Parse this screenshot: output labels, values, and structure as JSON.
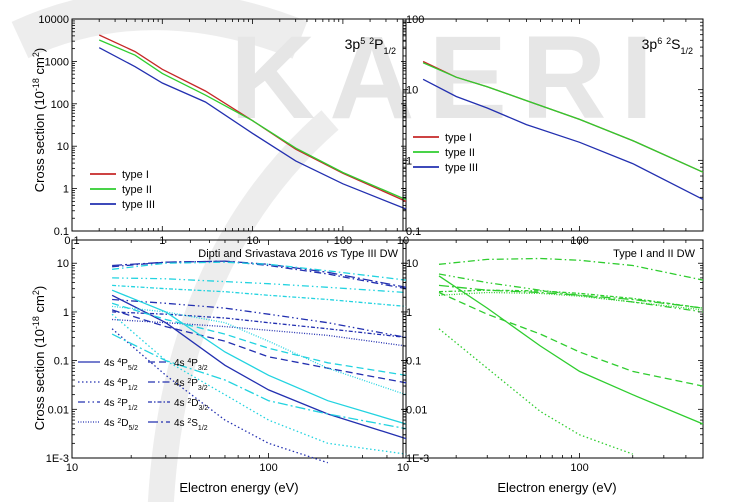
{
  "watermark": "KAERI",
  "colors": {
    "type_I": "#c62828",
    "type_II": "#2fcd2f",
    "type_III": "#2330b0",
    "dipti": "#22d3e0",
    "type_I_II": "#2fcd2f",
    "watermark": "#e8e8e8"
  },
  "figure": {
    "xlabel_bottom_left": "Electron energy (eV)",
    "xlabel_bottom_right": "Electron energy (eV)",
    "ylabel_top": "Cross section (10^-18 cm^2)",
    "ylabel_bottom": "Cross section (10^-18 cm^2)"
  },
  "chart_data": [
    {
      "type": "line",
      "panel": "top-left",
      "title_parts": {
        "base": "3p",
        "sup1": "5",
        "sup2": "2",
        "letter": "P",
        "sub": "1/2"
      },
      "xscale": "log",
      "yscale": "log",
      "xlim": [
        0.1,
        500
      ],
      "ylim": [
        0.1,
        10000
      ],
      "xticks": [
        "0.1",
        "1",
        "10",
        "100"
      ],
      "yticks": [
        "0.1",
        "1",
        "10",
        "100",
        "1000",
        "10000"
      ],
      "legend": {
        "placement": "lower-left",
        "entries": [
          "type I",
          "type II",
          "type III"
        ]
      },
      "series": [
        {
          "name": "type I",
          "color_key": "type_I",
          "x": [
            0.2,
            0.5,
            1,
            3,
            10,
            30,
            100,
            500
          ],
          "y": [
            4200,
            1700,
            650,
            200,
            40,
            8.5,
            2.3,
            0.5
          ]
        },
        {
          "name": "type II",
          "color_key": "type_II",
          "x": [
            0.2,
            0.5,
            1,
            3,
            10,
            30,
            100,
            500
          ],
          "y": [
            3200,
            1400,
            520,
            160,
            40,
            9,
            2.4,
            0.55
          ]
        },
        {
          "name": "type III",
          "color_key": "type_III",
          "x": [
            0.2,
            0.5,
            1,
            3,
            10,
            30,
            100,
            500
          ],
          "y": [
            2100,
            750,
            310,
            110,
            20,
            4.5,
            1.3,
            0.33
          ]
        }
      ]
    },
    {
      "type": "line",
      "panel": "top-right",
      "title_parts": {
        "base": "3p",
        "sup1": "6",
        "sup2": "2",
        "letter": "S",
        "sub": "1/2"
      },
      "xscale": "log",
      "yscale": "log",
      "xlim": [
        10,
        500
      ],
      "ylim": [
        0.1,
        100
      ],
      "xticks": [
        "10",
        "100"
      ],
      "yticks": [
        "0.1",
        "1",
        "10",
        "100"
      ],
      "legend": {
        "placement": "lower-left",
        "entries": [
          "type I",
          "type II",
          "type III"
        ]
      },
      "series": [
        {
          "name": "type I",
          "color_key": "type_I",
          "x": [
            13,
            20,
            30,
            50,
            100,
            200,
            500
          ],
          "y": [
            25,
            15,
            11,
            7,
            3.8,
            1.9,
            0.68
          ]
        },
        {
          "name": "type II",
          "color_key": "type_II",
          "x": [
            13,
            20,
            30,
            50,
            100,
            200,
            500
          ],
          "y": [
            24,
            15,
            11,
            7,
            3.8,
            1.9,
            0.68
          ]
        },
        {
          "name": "type III",
          "color_key": "type_III",
          "x": [
            13,
            20,
            30,
            50,
            100,
            200,
            500
          ],
          "y": [
            14,
            8,
            5.5,
            3.2,
            1.8,
            0.9,
            0.28
          ]
        }
      ]
    },
    {
      "type": "line",
      "panel": "bottom-left",
      "header": {
        "pre": "Dipti and Srivastava 2016 ",
        "vs": "vs",
        "post": " Type III DW"
      },
      "xscale": "log",
      "yscale": "log",
      "xlim": [
        10,
        500
      ],
      "ylim": [
        0.001,
        30
      ],
      "xticks": [
        "10",
        "100"
      ],
      "yticks": [
        "1E-3",
        "0.01",
        "0.1",
        "1",
        "10"
      ],
      "xlabel": "Electron energy (eV)",
      "legend": {
        "placement": "lower-left",
        "entries": [
          {
            "dash": "solid",
            "base": "4s",
            "sup": "4",
            "letter": "P",
            "sub": "5/2"
          },
          {
            "dash": "dash",
            "base": "4s",
            "sup": "4",
            "letter": "P",
            "sub": "3/2"
          },
          {
            "dash": "dot",
            "base": "4s",
            "sup": "4",
            "letter": "P",
            "sub": "1/2"
          },
          {
            "dash": "dashdot",
            "base": "4s",
            "sup": "2",
            "letter": "P",
            "sub": "3/2"
          },
          {
            "dash": "dashdotdot",
            "base": "4s",
            "sup": "2",
            "letter": "P",
            "sub": "1/2"
          },
          {
            "dash": "shortdashdot",
            "base": "4s",
            "sup": "2",
            "letter": "D",
            "sub": "3/2"
          },
          {
            "dash": "shortdot",
            "base": "4s",
            "sup": "2",
            "letter": "D",
            "sub": "5/2"
          },
          {
            "dash": "dashdotlong",
            "base": "4s",
            "sup": "2",
            "letter": "S",
            "sub": "1/2"
          }
        ]
      },
      "series": [
        {
          "color_key": "type_III",
          "dash": "solid",
          "x": [
            16,
            30,
            60,
            100,
            200,
            500
          ],
          "y": [
            2.2,
            0.6,
            0.08,
            0.025,
            0.008,
            0.0025
          ]
        },
        {
          "color_key": "type_III",
          "dash": "dash",
          "x": [
            16,
            30,
            60,
            100,
            200,
            500
          ],
          "y": [
            1.1,
            0.5,
            0.25,
            0.12,
            0.07,
            0.035
          ]
        },
        {
          "color_key": "type_III",
          "dash": "dot",
          "x": [
            16,
            30,
            60,
            100,
            200
          ],
          "y": [
            0.45,
            0.05,
            0.006,
            0.002,
            0.0008
          ]
        },
        {
          "color_key": "type_III",
          "dash": "dashdot",
          "x": [
            16,
            30,
            60,
            100,
            200,
            500
          ],
          "y": [
            8.5,
            10.5,
            11,
            9,
            6,
            3
          ]
        },
        {
          "color_key": "type_III",
          "dash": "dashdotdot",
          "x": [
            16,
            30,
            60,
            100,
            200,
            500
          ],
          "y": [
            1.8,
            1.5,
            1.2,
            0.9,
            0.6,
            0.3
          ]
        },
        {
          "color_key": "type_III",
          "dash": "shortdashdot",
          "x": [
            16,
            30,
            60,
            100,
            200,
            500
          ],
          "y": [
            1.0,
            0.9,
            0.75,
            0.6,
            0.45,
            0.3
          ]
        },
        {
          "color_key": "type_III",
          "dash": "shortdot",
          "x": [
            16,
            30,
            60,
            100,
            200,
            500
          ],
          "y": [
            0.7,
            0.6,
            0.5,
            0.42,
            0.33,
            0.2
          ]
        },
        {
          "color_key": "type_III",
          "dash": "dashdotlong",
          "x": [
            16,
            30,
            60,
            100,
            200,
            500
          ],
          "y": [
            9,
            10.5,
            11,
            9.5,
            6.5,
            3.2
          ]
        },
        {
          "color_key": "dipti",
          "dash": "solid",
          "x": [
            16,
            30,
            60,
            100,
            200,
            500
          ],
          "y": [
            2.8,
            1.0,
            0.15,
            0.05,
            0.015,
            0.005
          ]
        },
        {
          "color_key": "dipti",
          "dash": "dash",
          "x": [
            16,
            30,
            60,
            100,
            200,
            500
          ],
          "y": [
            1.5,
            0.7,
            0.35,
            0.18,
            0.09,
            0.05
          ]
        },
        {
          "color_key": "dipti",
          "dash": "dot",
          "x": [
            16,
            30,
            60,
            100,
            200,
            500
          ],
          "y": [
            0.9,
            0.1,
            0.02,
            0.006,
            0.002,
            0.0012
          ]
        },
        {
          "color_key": "dipti",
          "dash": "dashdot",
          "x": [
            16,
            30,
            60,
            100,
            200,
            500
          ],
          "y": [
            7.5,
            10,
            10.5,
            9.5,
            7,
            4.5
          ]
        },
        {
          "color_key": "dipti",
          "dash": "dashdotdot",
          "x": [
            16,
            30,
            60,
            100,
            200,
            500
          ],
          "y": [
            5,
            4.8,
            4.2,
            3.8,
            3.2,
            2.5
          ]
        },
        {
          "color_key": "dipti",
          "dash": "shortdashdot",
          "x": [
            16,
            30,
            60,
            100,
            200,
            500
          ],
          "y": [
            3.5,
            3.0,
            2.6,
            2.2,
            1.8,
            1.3
          ]
        },
        {
          "color_key": "dipti",
          "dash": "shortdot",
          "x": [
            16,
            30,
            60,
            100,
            200,
            500
          ],
          "y": [
            1.3,
            1.0,
            0.6,
            0.25,
            0.07,
            0.02
          ]
        },
        {
          "color_key": "dipti",
          "dash": "dashdotlong",
          "x": [
            16,
            30,
            60,
            100,
            200,
            500
          ],
          "y": [
            0.35,
            0.1,
            0.04,
            0.015,
            0.008,
            0.004
          ]
        }
      ]
    },
    {
      "type": "line",
      "panel": "bottom-right",
      "header": {
        "text": "Type I and II DW"
      },
      "xscale": "log",
      "yscale": "log",
      "xlim": [
        10,
        500
      ],
      "ylim": [
        0.001,
        30
      ],
      "xticks": [
        "10",
        "100"
      ],
      "yticks": [
        "1E-3",
        "0.01",
        "0.1",
        "1",
        "10"
      ],
      "xlabel": "Electron energy (eV)",
      "series": [
        {
          "color_key": "type_I_II",
          "dash": "solid",
          "x": [
            16,
            30,
            60,
            100,
            200,
            500
          ],
          "y": [
            5.5,
            1.2,
            0.2,
            0.06,
            0.02,
            0.005
          ]
        },
        {
          "color_key": "type_I_II",
          "dash": "dash",
          "x": [
            16,
            30,
            60,
            100,
            200,
            500
          ],
          "y": [
            2.5,
            0.9,
            0.35,
            0.15,
            0.06,
            0.03
          ]
        },
        {
          "color_key": "type_I_II",
          "dash": "dot",
          "x": [
            16,
            30,
            60,
            100,
            200
          ],
          "y": [
            0.45,
            0.07,
            0.009,
            0.003,
            0.0012
          ]
        },
        {
          "color_key": "type_I_II",
          "dash": "dashdot",
          "x": [
            16,
            30,
            60,
            100,
            200,
            500
          ],
          "y": [
            9.5,
            12,
            12.5,
            11.5,
            9,
            4.5
          ]
        },
        {
          "color_key": "type_I_II",
          "dash": "dashdotdot",
          "x": [
            16,
            30,
            60,
            100,
            200,
            500
          ],
          "y": [
            6,
            4,
            2.8,
            2.2,
            1.6,
            1.0
          ]
        },
        {
          "color_key": "type_I_II",
          "dash": "shortdashdot",
          "x": [
            16,
            30,
            60,
            100,
            200,
            500
          ],
          "y": [
            2.6,
            2.8,
            2.7,
            2.4,
            1.9,
            1.2
          ]
        },
        {
          "color_key": "type_I_II",
          "dash": "shortdot",
          "x": [
            16,
            30,
            60,
            100,
            200,
            500
          ],
          "y": [
            2.2,
            2.5,
            2.4,
            2.1,
            1.6,
            1.1
          ]
        },
        {
          "color_key": "type_I_II",
          "dash": "dashdotlong",
          "x": [
            16,
            30,
            60,
            100,
            200,
            500
          ],
          "y": [
            3.5,
            2.8,
            2.5,
            2.2,
            1.8,
            1.2
          ]
        }
      ]
    }
  ]
}
